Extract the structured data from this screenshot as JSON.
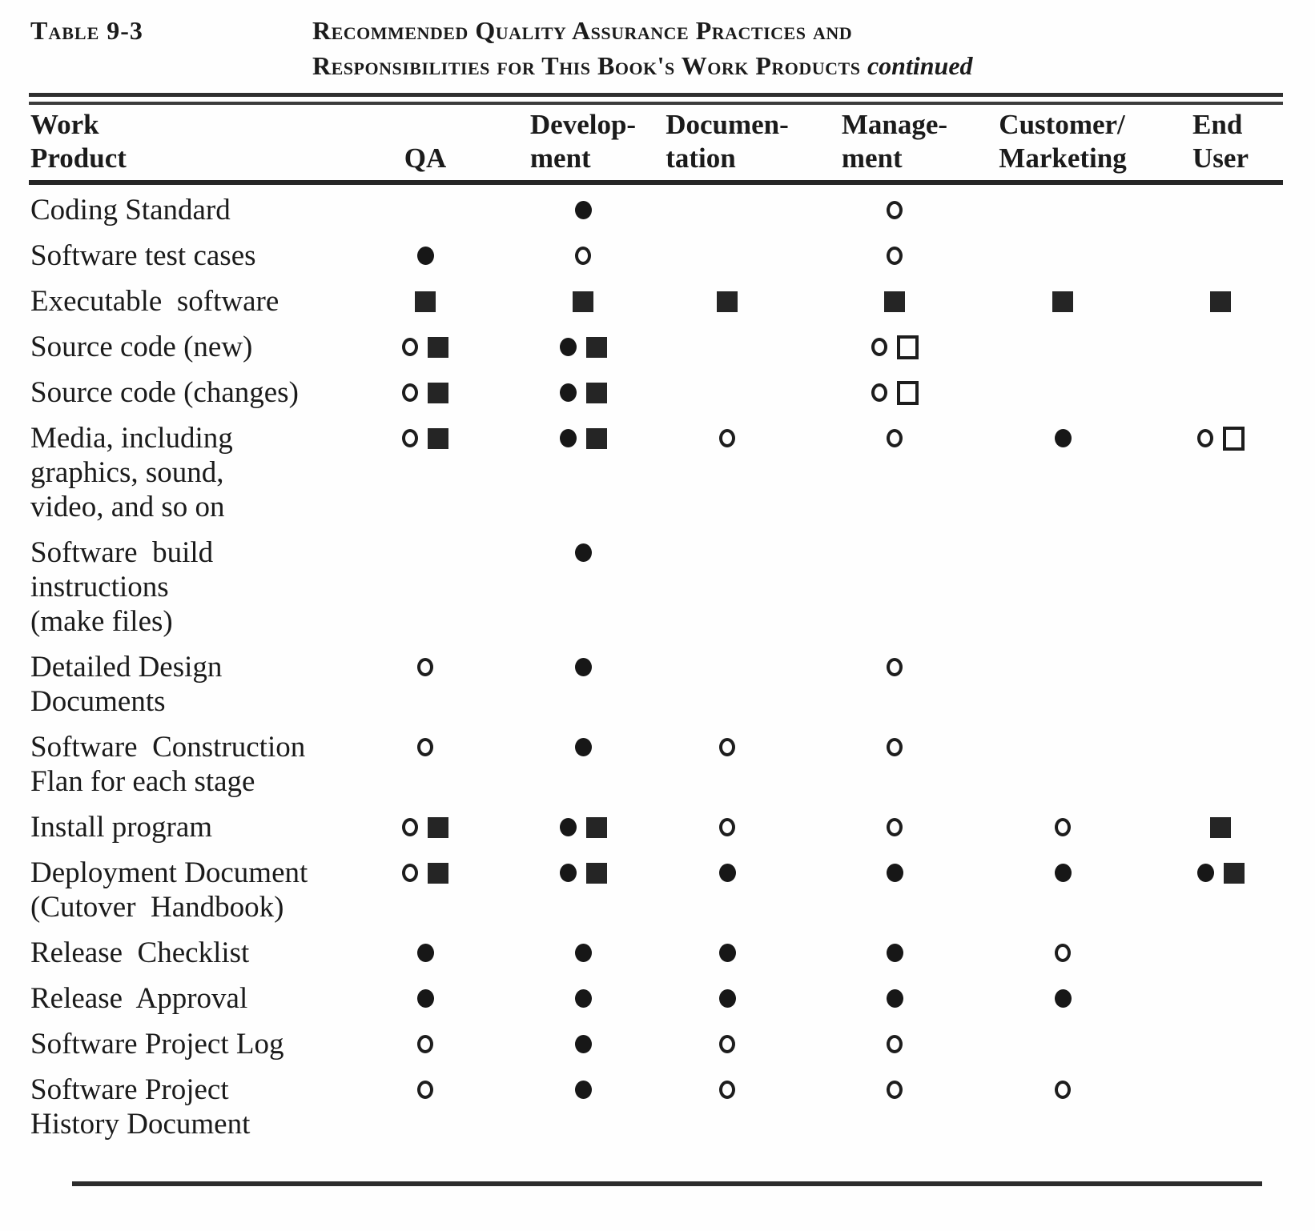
{
  "header": {
    "table_label": "Table 9-3",
    "title_line1": "Recommended Quality Assurance Practices and",
    "title_line2": "Responsibilities for This Book's Work Products",
    "continued": "continued"
  },
  "colors": {
    "ink": "#1b1b1b",
    "paper": "#fefefe"
  },
  "symbol_glyphs": {
    "filled-circle": "●",
    "open-circle": "○",
    "filled-square": "■",
    "open-square": "□"
  },
  "table": {
    "columns": [
      {
        "id": "work-product",
        "label": "Work\nProduct"
      },
      {
        "id": "qa",
        "label": "QA"
      },
      {
        "id": "development",
        "label": "Develop-\nment"
      },
      {
        "id": "documentation",
        "label": "Documen-\ntation"
      },
      {
        "id": "management",
        "label": "Manage-\nment"
      },
      {
        "id": "customer-marketing",
        "label": "Customer/\nMarketing"
      },
      {
        "id": "end-user",
        "label": "End\nUser"
      }
    ],
    "rows": [
      {
        "label": "Coding Standard",
        "cells": [
          [],
          [
            "filled-circle"
          ],
          [],
          [
            "open-circle"
          ],
          [],
          []
        ]
      },
      {
        "label": "Software test cases",
        "cells": [
          [
            "filled-circle"
          ],
          [
            "open-circle"
          ],
          [],
          [
            "open-circle"
          ],
          [],
          []
        ]
      },
      {
        "label": "Executable  software",
        "cells": [
          [
            "filled-square"
          ],
          [
            "filled-square"
          ],
          [
            "filled-square"
          ],
          [
            "filled-square"
          ],
          [
            "filled-square"
          ],
          [
            "filled-square"
          ]
        ]
      },
      {
        "label": "Source code (new)",
        "cells": [
          [
            "open-circle",
            "filled-square"
          ],
          [
            "filled-circle",
            "filled-square"
          ],
          [],
          [
            "open-circle",
            "open-square"
          ],
          [],
          []
        ]
      },
      {
        "label": "Source code (changes)",
        "cells": [
          [
            "open-circle",
            "filled-square"
          ],
          [
            "filled-circle",
            "filled-square"
          ],
          [],
          [
            "open-circle",
            "open-square"
          ],
          [],
          []
        ]
      },
      {
        "label": "Media, including\ngraphics, sound,\nvideo, and so on",
        "cells": [
          [
            "open-circle",
            "filled-square"
          ],
          [
            "filled-circle",
            "filled-square"
          ],
          [
            "open-circle"
          ],
          [
            "open-circle"
          ],
          [
            "filled-circle"
          ],
          [
            "open-circle",
            "open-square"
          ]
        ]
      },
      {
        "label": "Software  build\ninstructions\n(make files)",
        "cells": [
          [],
          [
            "filled-circle"
          ],
          [],
          [],
          [],
          []
        ]
      },
      {
        "label": "Detailed Design\nDocuments",
        "cells": [
          [
            "open-circle"
          ],
          [
            "filled-circle"
          ],
          [],
          [
            "open-circle"
          ],
          [],
          []
        ]
      },
      {
        "label": "Software  Construction\nFlan for each stage",
        "cells": [
          [
            "open-circle"
          ],
          [
            "filled-circle"
          ],
          [
            "open-circle"
          ],
          [
            "open-circle"
          ],
          [],
          []
        ]
      },
      {
        "label": "Install program",
        "cells": [
          [
            "open-circle",
            "filled-square"
          ],
          [
            "filled-circle",
            "filled-square"
          ],
          [
            "open-circle"
          ],
          [
            "open-circle"
          ],
          [
            "open-circle"
          ],
          [
            "filled-square"
          ]
        ]
      },
      {
        "label": "Deployment Document\n(Cutover  Handbook)",
        "cells": [
          [
            "open-circle",
            "filled-square"
          ],
          [
            "filled-circle",
            "filled-square"
          ],
          [
            "filled-circle"
          ],
          [
            "filled-circle"
          ],
          [
            "filled-circle"
          ],
          [
            "filled-circle",
            "filled-square"
          ]
        ]
      },
      {
        "label": "Release  Checklist",
        "cells": [
          [
            "filled-circle"
          ],
          [
            "filled-circle"
          ],
          [
            "filled-circle"
          ],
          [
            "filled-circle"
          ],
          [
            "open-circle"
          ],
          []
        ]
      },
      {
        "label": "Release  Approval",
        "cells": [
          [
            "filled-circle"
          ],
          [
            "filled-circle"
          ],
          [
            "filled-circle"
          ],
          [
            "filled-circle"
          ],
          [
            "filled-circle"
          ],
          []
        ]
      },
      {
        "label": "Software Project Log",
        "cells": [
          [
            "open-circle"
          ],
          [
            "filled-circle"
          ],
          [
            "open-circle"
          ],
          [
            "open-circle"
          ],
          [],
          []
        ]
      },
      {
        "label": "Software Project\nHistory Document",
        "cells": [
          [
            "open-circle"
          ],
          [
            "filled-circle"
          ],
          [
            "open-circle"
          ],
          [
            "open-circle"
          ],
          [
            "open-circle"
          ],
          []
        ]
      }
    ]
  }
}
